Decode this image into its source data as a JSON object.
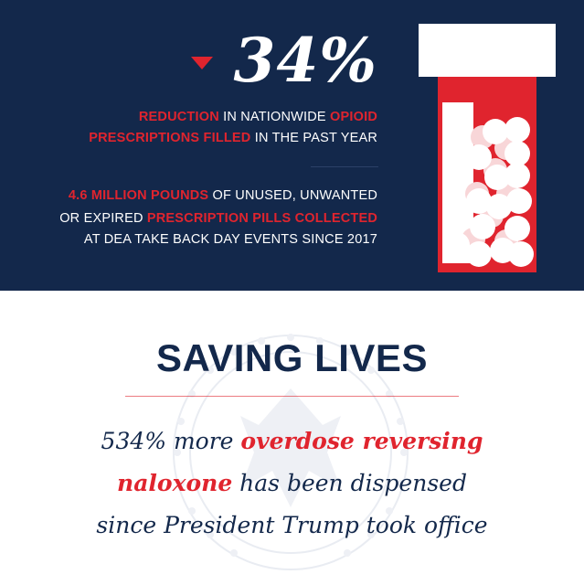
{
  "stats": {
    "percent": "34%",
    "line1": {
      "a": "REDUCTION",
      "b": " IN NATIONWIDE ",
      "c": "OPIOID"
    },
    "line2": {
      "a": "PRESCRIPTIONS FILLED",
      "b": " IN THE PAST YEAR"
    },
    "line3": {
      "a": "4.6 MILLION POUNDS",
      "b": " OF UNUSED, UNWANTED"
    },
    "line4": {
      "a": "OR EXPIRED ",
      "b": "PRESCRIPTION PILLS COLLECTED"
    },
    "line5": "AT DEA TAKE BACK DAY EVENTS SINCE 2017"
  },
  "headline": "SAVING LIVES",
  "quote": {
    "l1a": "534% more ",
    "l1b": "overdose reversing",
    "l2a": "naloxone",
    "l2b": " has been dispensed",
    "l3": "since President Trump took office"
  },
  "colors": {
    "navy": "#13284b",
    "red": "#e0242e",
    "white": "#ffffff"
  },
  "icons": [
    "down-arrow-icon",
    "pill-bottle-icon",
    "presidential-seal-icon"
  ]
}
